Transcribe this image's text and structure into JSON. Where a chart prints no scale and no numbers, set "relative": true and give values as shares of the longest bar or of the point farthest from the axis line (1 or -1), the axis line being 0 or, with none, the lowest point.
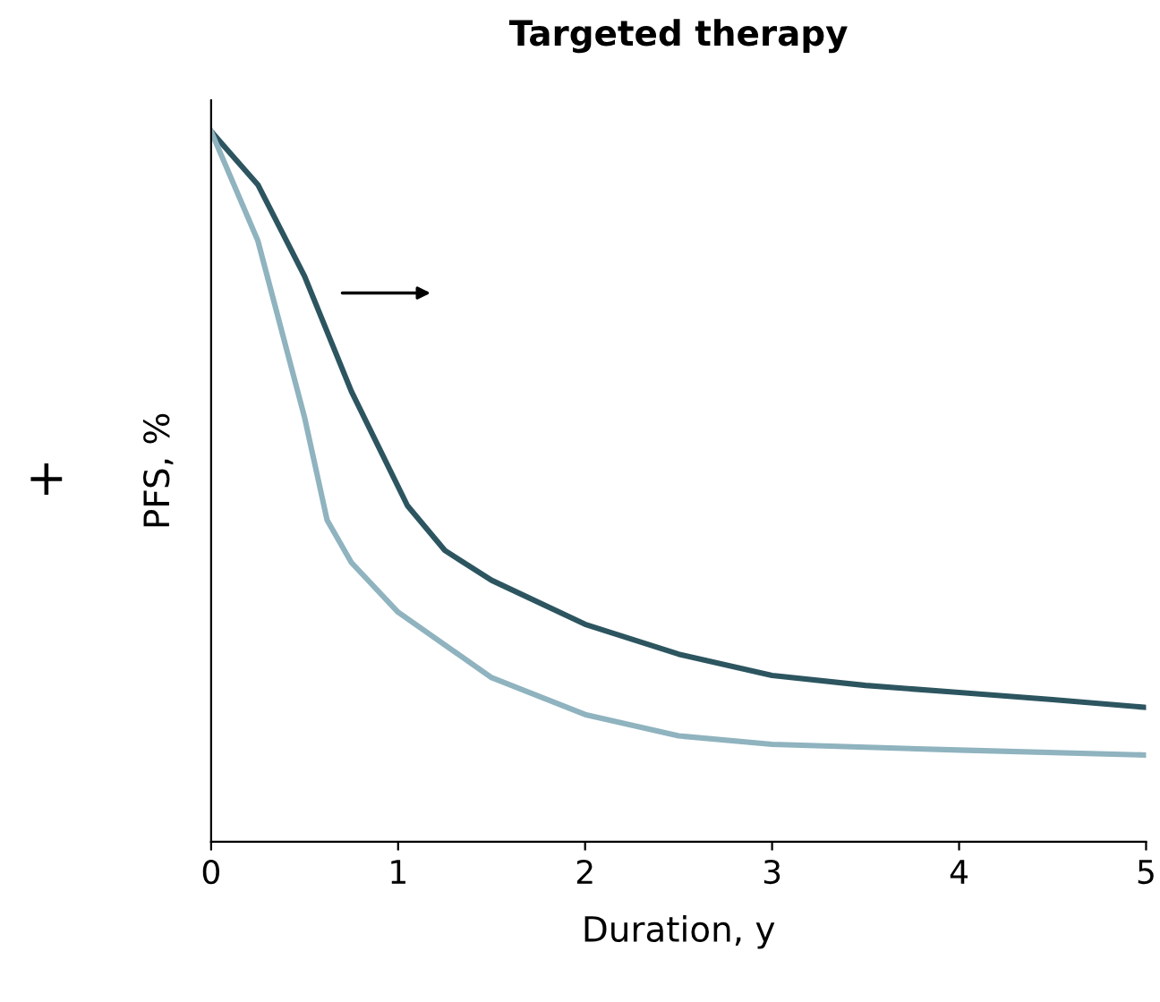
{
  "chart_data": {
    "type": "line",
    "title": "Targeted therapy",
    "xlabel": "Duration, y",
    "ylabel": "PFS, %",
    "relative": true,
    "xlim": [
      0,
      5
    ],
    "xticks": [
      0,
      1,
      2,
      3,
      4,
      5
    ],
    "grid": false,
    "legend": false,
    "marker": "none",
    "line_style": "solid",
    "annotations": [
      "+"
    ],
    "series": [
      {
        "color": "#2c5560",
        "x": [
          0,
          0.25,
          0.5,
          0.75,
          1.05,
          1.25,
          1.5,
          2,
          2.5,
          3,
          3.5,
          4,
          4.5,
          5
        ],
        "values": [
          1.0,
          0.925,
          0.796,
          0.634,
          0.473,
          0.41,
          0.368,
          0.306,
          0.264,
          0.234,
          0.22,
          0.21,
          0.2,
          0.189
        ]
      },
      {
        "color": "#8fb3bf",
        "x": [
          0,
          0.25,
          0.5,
          0.62,
          0.75,
          1,
          1.5,
          2,
          2.5,
          3,
          4,
          5
        ],
        "values": [
          1.0,
          0.846,
          0.597,
          0.453,
          0.393,
          0.323,
          0.231,
          0.179,
          0.149,
          0.137,
          0.129,
          0.122
        ]
      }
    ]
  }
}
